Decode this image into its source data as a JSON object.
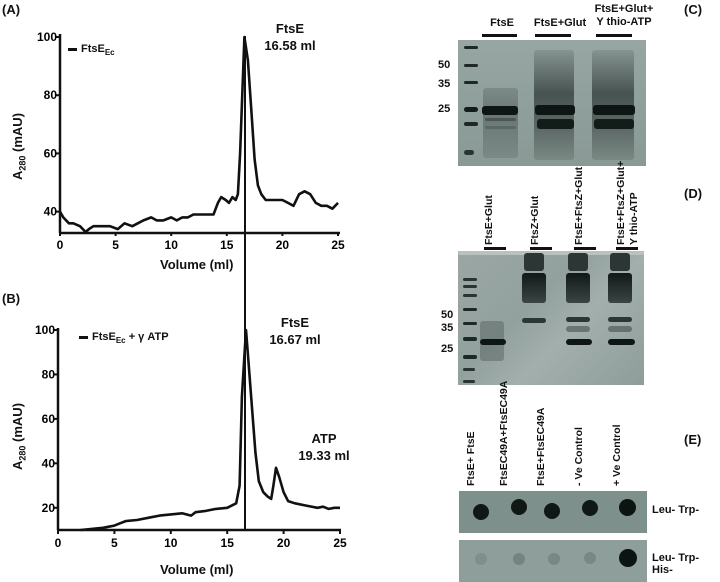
{
  "panels": {
    "A": {
      "label": "(A)"
    },
    "B": {
      "label": "(B)"
    },
    "C": {
      "label": "(C)"
    },
    "D": {
      "label": "(D)"
    },
    "E": {
      "label": "(E)"
    }
  },
  "chart_data": [
    {
      "panel": "A",
      "type": "line",
      "title": "",
      "legend": [
        "FtsE_Ec"
      ],
      "legend_main": "FtsE",
      "legend_sub": "Ec",
      "xlabel": "Volume (ml)",
      "ylabel": "A280 (mAU)",
      "ylabel_main": "A",
      "ylabel_sub": "280",
      "ylabel_rest": " (mAU)",
      "xlim": [
        0,
        25
      ],
      "ylim": [
        33,
        100
      ],
      "xticks": [
        "0",
        "5",
        "10",
        "15",
        "20",
        "25"
      ],
      "yticks": [
        "40",
        "60",
        "80",
        "100"
      ],
      "annotations": [
        {
          "text": "FtsE",
          "value": "16.58 ml",
          "x": 16.58
        }
      ],
      "series": [
        {
          "name": "FtsE_Ec",
          "x": [
            0,
            0.3,
            0.8,
            1.2,
            1.8,
            2.3,
            2.6,
            3.0,
            3.5,
            4.5,
            5.2,
            5.8,
            6.5,
            7.0,
            7.5,
            8.2,
            8.7,
            9.3,
            10.0,
            10.5,
            11.0,
            11.5,
            12.0,
            13.0,
            13.8,
            14.2,
            14.5,
            14.9,
            15.2,
            15.5,
            15.8,
            16.0,
            16.2,
            16.58,
            16.9,
            17.2,
            17.5,
            17.8,
            18.1,
            18.5,
            19.0,
            19.5,
            20.0,
            20.5,
            21.0,
            21.5,
            22.0,
            22.5,
            23.0,
            23.5,
            24.0,
            24.5,
            25.0
          ],
          "y": [
            40,
            38,
            36,
            36,
            35,
            33,
            34,
            35,
            35,
            35,
            34,
            36,
            35,
            36,
            37,
            38,
            37,
            37,
            38,
            37,
            38,
            38,
            39,
            39,
            39,
            43,
            45,
            44,
            43,
            45,
            44,
            46,
            60,
            100,
            92,
            75,
            58,
            49,
            46,
            44,
            44,
            44,
            44,
            43,
            42,
            46,
            47,
            46,
            43,
            42,
            42,
            41,
            43
          ]
        }
      ]
    },
    {
      "panel": "B",
      "type": "line",
      "title": "",
      "legend": [
        "FtsE_Ec + γ ATP"
      ],
      "legend_main": "FtsE",
      "legend_sub": "Ec",
      "legend_rest": " + γ ATP",
      "xlabel": "Volume (ml)",
      "ylabel": "A280 (mAU)",
      "ylabel_main": "A",
      "ylabel_sub": "280",
      "ylabel_rest": " (mAU)",
      "xlim": [
        0,
        25
      ],
      "ylim": [
        10,
        100
      ],
      "xticks": [
        "0",
        "5",
        "10",
        "15",
        "20",
        "25"
      ],
      "yticks": [
        "20",
        "40",
        "60",
        "80",
        "100"
      ],
      "annotations": [
        {
          "text": "FtsE",
          "value": "16.67 ml",
          "x": 16.67
        },
        {
          "text": "ATP",
          "value": "19.33 ml",
          "x": 19.33
        }
      ],
      "series": [
        {
          "name": "FtsE_Ec + γ ATP",
          "x": [
            2.0,
            3.0,
            4.0,
            4.5,
            5.0,
            5.5,
            6.0,
            7.0,
            8.0,
            9.0,
            10.0,
            11.0,
            11.8,
            12.2,
            13.0,
            14.0,
            15.0,
            15.8,
            16.1,
            16.3,
            16.67,
            16.9,
            17.2,
            17.5,
            17.8,
            18.2,
            18.6,
            18.9,
            19.1,
            19.33,
            19.6,
            20.0,
            20.4,
            21.0,
            22.0,
            23.0,
            23.5,
            24.0,
            24.5,
            25.0
          ],
          "y": [
            10,
            10.5,
            11,
            11.5,
            12,
            13,
            14,
            14.5,
            15.5,
            16.5,
            17,
            17.5,
            16.5,
            18,
            18.5,
            19.5,
            20,
            22,
            30,
            70,
            100,
            85,
            65,
            45,
            32,
            27,
            25,
            24,
            30,
            38,
            34,
            27,
            23,
            22,
            21,
            20,
            20.5,
            19.5,
            20,
            20
          ]
        }
      ]
    }
  ],
  "gel_C": {
    "lanes": [
      {
        "label": "FtsE"
      },
      {
        "label": "FtsE+Glut"
      },
      {
        "label_line1": "FtsE+Glut+",
        "label_line2": "Y thio-ATP"
      }
    ],
    "markers": [
      "50",
      "35",
      "25"
    ]
  },
  "gel_D": {
    "lanes": [
      {
        "label": "FtsE+Glut"
      },
      {
        "label": "FtsZ+Glut"
      },
      {
        "label": "FtsE+FtsZ+Glut"
      },
      {
        "label_line1": "FtsE+FtsZ+Glut+",
        "label_line2": "Y thio-ATP"
      }
    ],
    "markers": [
      "50",
      "35",
      "25"
    ]
  },
  "y2h_E": {
    "columns": [
      "FtsE+ FtsE",
      "FtsEC49A+FtsEC49A",
      "FtsE+FtsEC49A",
      "- Ve Control",
      "+ Ve Control"
    ],
    "rows": [
      {
        "label": "Leu- Trp-"
      },
      {
        "label": "Leu- Trp- His-"
      }
    ]
  },
  "colors": {
    "line": "#111111",
    "gel_bg": "#8b9c98",
    "gel_band": "#121a18",
    "plate_bg": "#7d8f8b"
  }
}
